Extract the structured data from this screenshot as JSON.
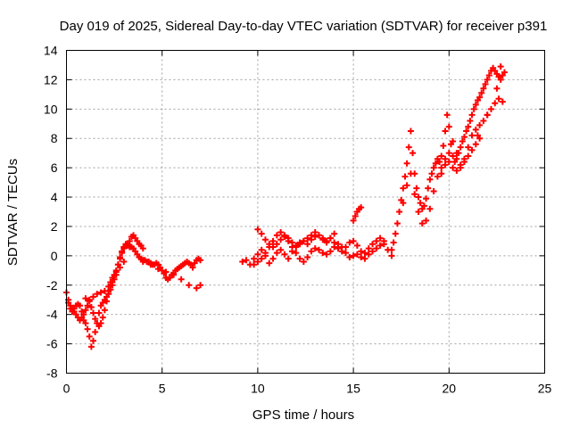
{
  "chart_data": {
    "type": "scatter",
    "title": "Day 019 of 2025, Sidereal Day-to-day VTEC variation (SDTVAR) for receiver p391",
    "xlabel": "GPS time / hours",
    "ylabel": "SDTVAR / TECUs",
    "xlim": [
      0,
      25
    ],
    "ylim": [
      -8,
      14
    ],
    "xticks": [
      "0",
      "5",
      "10",
      "15",
      "20",
      "25"
    ],
    "yticks": [
      "-8",
      "-6",
      "-4",
      "-2",
      "0",
      "2",
      "4",
      "6",
      "8",
      "10",
      "12",
      "14"
    ],
    "grid": true,
    "marker": "plus",
    "color": "#ff0000",
    "series": [
      {
        "x": [
          0.0,
          0.1,
          0.2,
          0.3,
          0.4,
          0.5,
          0.6,
          0.7,
          0.8,
          0.9,
          1.0,
          1.1,
          1.2,
          1.3,
          1.4,
          1.5,
          1.6,
          1.7,
          1.8,
          1.9,
          2.0,
          2.1,
          2.2,
          2.3,
          2.4,
          2.5,
          2.6,
          2.7,
          2.8,
          2.9,
          3.0,
          3.1,
          3.2,
          3.3,
          3.4,
          3.5,
          3.6,
          3.7,
          3.8,
          3.9,
          4.0,
          4.1,
          4.2,
          4.3,
          4.4,
          4.5,
          4.6,
          4.7,
          4.8,
          4.9,
          5.0,
          5.1,
          5.2,
          5.3,
          5.4,
          5.5,
          5.6,
          5.7,
          5.8,
          5.9,
          6.0,
          6.1,
          6.2,
          6.3,
          6.4,
          6.5,
          6.6,
          6.7,
          6.8,
          6.9,
          7.0
        ],
        "y": [
          -2.5,
          -3.0,
          -3.4,
          -3.6,
          -3.8,
          -4.0,
          -4.2,
          -4.4,
          -4.2,
          -4.4,
          -4.6,
          -5.0,
          -5.5,
          -6.2,
          -5.8,
          -5.2,
          -4.6,
          -3.9,
          -3.4,
          -3.2,
          -3.0,
          -2.8,
          -2.6,
          -2.3,
          -2.0,
          -1.6,
          -1.1,
          -0.6,
          -0.1,
          0.3,
          0.6,
          0.8,
          0.7,
          0.6,
          0.6,
          0.5,
          0.3,
          0.1,
          -0.1,
          -0.2,
          -0.3,
          -0.3,
          -0.4,
          -0.4,
          -0.5,
          -0.6,
          -0.6,
          -0.5,
          -0.6,
          -0.8,
          -1.0,
          -1.2,
          -1.5,
          -1.6,
          -1.5,
          -1.3,
          -1.2,
          -1.0,
          -0.9,
          -0.8,
          -0.7,
          -0.6,
          -0.5,
          -0.4,
          -0.5,
          -0.6,
          -0.8,
          -0.5,
          -0.3,
          -0.2,
          -0.3
        ]
      },
      {
        "x": [
          0.1,
          0.2,
          0.3,
          0.4,
          0.5,
          0.6,
          0.7,
          0.8,
          0.9,
          1.0,
          1.1,
          1.2,
          1.3,
          1.4,
          1.5,
          1.6,
          1.7,
          1.8,
          1.9,
          2.0,
          2.1,
          2.2,
          2.3,
          2.4,
          2.5,
          2.6,
          2.7,
          2.8,
          2.9,
          3.0,
          3.1,
          3.2,
          3.3,
          3.4,
          3.5,
          3.6,
          3.7,
          3.8,
          3.9,
          4.0
        ],
        "y": [
          -3.2,
          -3.6,
          -3.8,
          -3.6,
          -3.4,
          -3.3,
          -3.4,
          -3.8,
          -4.0,
          -3.7,
          -3.4,
          -3.1,
          -3.5,
          -3.9,
          -4.3,
          -4.6,
          -4.8,
          -4.6,
          -4.2,
          -3.7,
          -3.1,
          -2.4,
          -1.8,
          -1.5,
          -1.3,
          -1.0,
          -0.6,
          -0.2,
          0.2,
          0.5,
          0.7,
          0.8,
          1.0,
          1.3,
          1.4,
          1.2,
          1.0,
          0.8,
          0.7,
          0.5
        ]
      },
      {
        "x": [
          1.0,
          1.2,
          1.4,
          1.6,
          1.8,
          2.0,
          2.2,
          2.4,
          2.6,
          2.8,
          3.0
        ],
        "y": [
          -2.9,
          -3.0,
          -2.8,
          -2.6,
          -2.5,
          -2.4,
          -2.1,
          -1.8,
          -1.3,
          -0.8,
          -0.4
        ]
      },
      {
        "x": [
          4.0,
          4.4,
          4.8,
          5.2,
          5.6,
          6.0,
          6.4,
          6.8,
          7.0
        ],
        "y": [
          -0.4,
          -0.6,
          -0.9,
          -1.1,
          -1.3,
          -1.6,
          -2.0,
          -2.2,
          -2.0
        ]
      },
      {
        "x": [
          9.2,
          9.4,
          9.6,
          9.8,
          10.0,
          10.2,
          10.4,
          10.6,
          10.8,
          11.0,
          11.2,
          11.4,
          11.6,
          11.8,
          12.0,
          12.2,
          12.4,
          12.6,
          12.8,
          13.0,
          13.2,
          13.4,
          13.6,
          13.8,
          14.0,
          14.2,
          14.4,
          14.6,
          14.8,
          15.0,
          15.2,
          15.4,
          15.6,
          15.8,
          16.0,
          16.2,
          16.4,
          16.6,
          16.8,
          17.0
        ],
        "y": [
          -0.4,
          -0.3,
          -0.6,
          -0.2,
          0.1,
          0.4,
          0.0,
          -0.5,
          -0.2,
          0.2,
          0.4,
          0.1,
          -0.2,
          0.3,
          0.6,
          0.9,
          1.0,
          0.8,
          1.1,
          1.3,
          1.4,
          1.2,
          1.0,
          1.2,
          0.9,
          0.5,
          0.3,
          0.6,
          0.9,
          1.0,
          0.7,
          0.3,
          0.2,
          0.5,
          0.8,
          1.0,
          1.2,
          0.8,
          0.4,
          0.0
        ]
      },
      {
        "x": [
          9.8,
          10.0,
          10.2,
          10.4,
          10.6,
          10.8,
          11.0,
          11.2,
          11.4,
          11.6,
          11.8,
          12.0,
          12.2,
          12.4,
          12.6,
          12.8,
          13.0,
          13.2,
          13.4,
          13.6,
          13.8,
          14.0,
          14.2,
          14.4,
          14.6,
          14.8,
          15.0,
          15.2,
          15.4,
          15.6,
          15.8,
          16.0,
          16.2,
          16.4,
          16.6
        ],
        "y": [
          -0.6,
          -0.4,
          -0.2,
          0.2,
          0.6,
          1.0,
          1.4,
          1.6,
          1.4,
          1.0,
          0.6,
          0.2,
          -0.2,
          -0.4,
          -0.1,
          0.3,
          0.5,
          0.4,
          0.2,
          0.1,
          0.3,
          0.6,
          0.8,
          0.6,
          0.2,
          -0.1,
          0.0,
          0.1,
          -0.1,
          -0.2,
          0.1,
          0.3,
          0.5,
          0.7,
          1.0
        ]
      },
      {
        "x": [
          10.0,
          10.2,
          10.4,
          10.6,
          10.8,
          11.0,
          11.2,
          11.4,
          11.6,
          11.8,
          12.0,
          12.2,
          12.4,
          12.6,
          12.8,
          13.0,
          13.2,
          13.4,
          13.6,
          13.8,
          14.0
        ],
        "y": [
          1.8,
          1.5,
          1.1,
          0.8,
          0.6,
          0.8,
          1.1,
          1.3,
          1.2,
          0.9,
          0.7,
          0.8,
          1.0,
          1.2,
          1.4,
          1.6,
          1.4,
          1.1,
          0.9,
          1.2,
          1.5
        ]
      },
      {
        "x": [
          15.0,
          15.1,
          15.2,
          15.3,
          15.4
        ],
        "y": [
          2.4,
          2.7,
          3.0,
          3.2,
          3.3
        ]
      },
      {
        "x": [
          17.0,
          17.1,
          17.2,
          17.3,
          17.4,
          17.5,
          17.6,
          17.7,
          17.8,
          17.9,
          18.0,
          18.1,
          18.2,
          18.3,
          18.4,
          18.5,
          18.6,
          18.7,
          18.8,
          18.9,
          19.0,
          19.1,
          19.2,
          19.3,
          19.4,
          19.5,
          19.6,
          19.7,
          19.8,
          19.9,
          20.0,
          20.1,
          20.2,
          20.3,
          20.4,
          20.5,
          20.6,
          20.7,
          20.8,
          20.9,
          21.0,
          21.1,
          21.2,
          21.3,
          21.4,
          21.5,
          21.6,
          21.7,
          21.8,
          21.9,
          22.0,
          22.1,
          22.2,
          22.3,
          22.4,
          22.5,
          22.6,
          22.7,
          22.8,
          22.9
        ],
        "y": [
          0.4,
          0.9,
          1.5,
          2.2,
          3.0,
          3.8,
          4.6,
          5.4,
          6.3,
          7.4,
          8.5,
          7.0,
          5.6,
          4.6,
          4.0,
          3.6,
          3.2,
          3.4,
          3.9,
          4.6,
          5.2,
          5.6,
          6.0,
          6.3,
          6.6,
          6.4,
          6.8,
          7.5,
          8.5,
          9.6,
          8.8,
          7.6,
          6.8,
          6.4,
          6.6,
          7.0,
          7.4,
          7.8,
          8.1,
          8.5,
          8.8,
          9.2,
          9.6,
          10.0,
          10.3,
          10.6,
          10.8,
          11.1,
          11.4,
          11.7,
          12.0,
          12.3,
          12.6,
          12.8,
          12.6,
          12.4,
          12.2,
          12.0,
          12.3,
          12.5
        ]
      },
      {
        "x": [
          17.6,
          17.8,
          18.0,
          18.2,
          18.4,
          18.6,
          18.8,
          19.0,
          19.2,
          19.4,
          19.6,
          19.8,
          20.0,
          20.2,
          20.4,
          20.6,
          20.8,
          21.0,
          21.2,
          21.4,
          21.6
        ],
        "y": [
          3.6,
          4.8,
          5.6,
          4.2,
          3.0,
          2.2,
          2.4,
          3.2,
          4.4,
          5.4,
          6.0,
          6.6,
          6.4,
          6.0,
          5.8,
          6.0,
          6.4,
          6.8,
          7.2,
          7.6,
          8.0
        ]
      },
      {
        "x": [
          19.6,
          19.8,
          20.0,
          20.2,
          20.4,
          20.6,
          20.8,
          21.0,
          21.2,
          21.4,
          21.6,
          21.8,
          22.0,
          22.2,
          22.4,
          22.6,
          22.8
        ],
        "y": [
          5.6,
          6.2,
          7.0,
          7.8,
          7.0,
          6.2,
          6.6,
          7.4,
          8.2,
          8.6,
          8.9,
          9.2,
          9.6,
          10.0,
          10.4,
          10.7,
          10.5
        ]
      },
      {
        "x": [
          21.5,
          22.0,
          22.5,
          22.7
        ],
        "y": [
          8.2,
          9.6,
          11.4,
          12.9
        ]
      }
    ]
  }
}
